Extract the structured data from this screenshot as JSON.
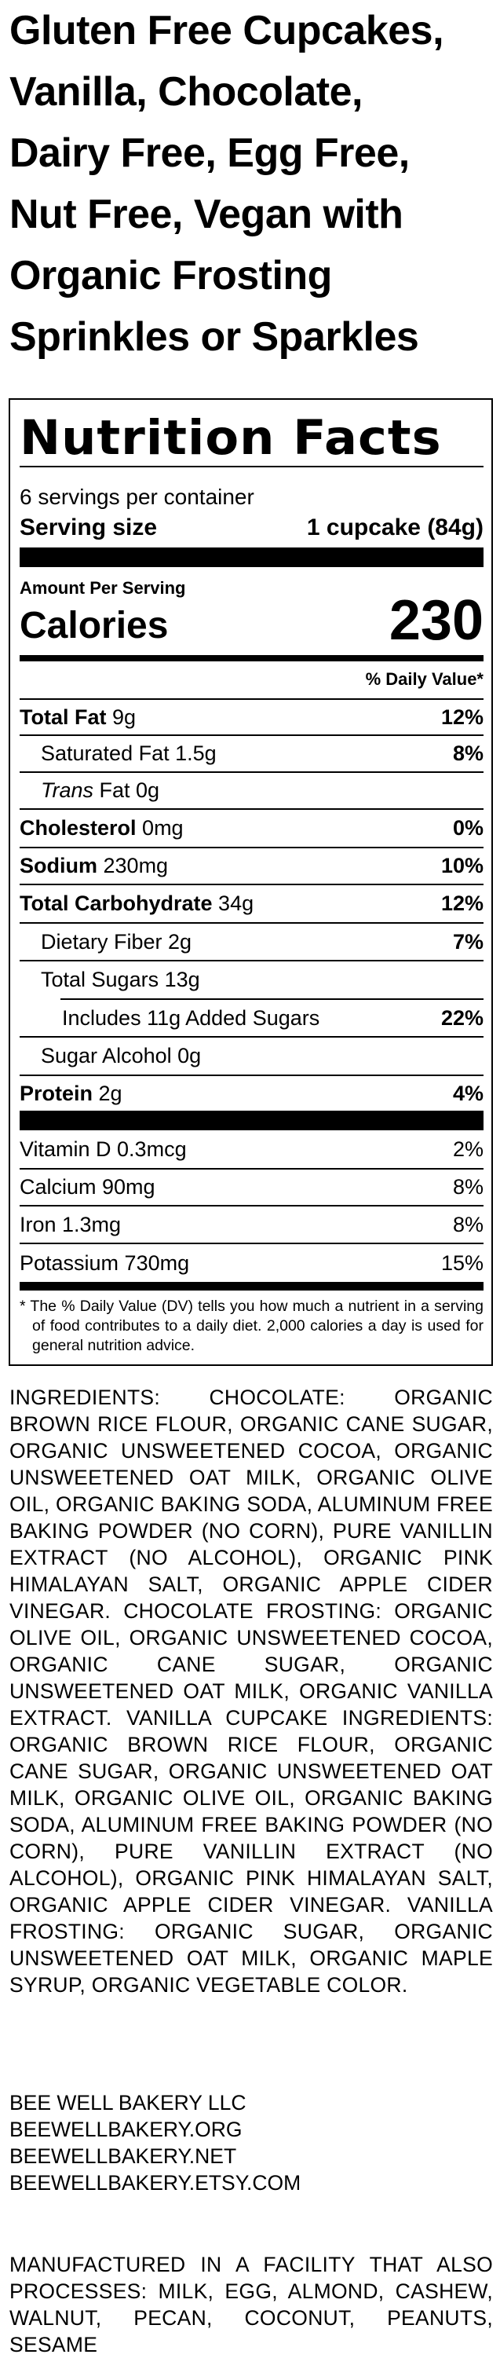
{
  "title_lines": [
    "Gluten Free Cupcakes,",
    "Vanilla, Chocolate,",
    "Dairy Free, Egg Free,",
    "Nut Free, Vegan with",
    "Organic Frosting",
    "Sprinkles or Sparkles"
  ],
  "nutrition": {
    "heading": "Nutrition Facts",
    "servings_per_container": "6 servings per container",
    "serving_size_label": "Serving size",
    "serving_size_value": "1 cupcake (84g)",
    "amount_per_serving": "Amount Per Serving",
    "calories_label": "Calories",
    "calories_value": "230",
    "daily_value_header": "% Daily Value*",
    "rows": [
      {
        "label": "Total Fat",
        "amount": "9g",
        "dv": "12%"
      },
      {
        "label": "Saturated Fat 1.5g",
        "amount": "",
        "dv": "8%"
      },
      {
        "label": "Trans",
        "amount": "Fat 0g",
        "dv": ""
      },
      {
        "label": "Cholesterol",
        "amount": "0mg",
        "dv": "0%"
      },
      {
        "label": "Sodium",
        "amount": "230mg",
        "dv": "10%"
      },
      {
        "label": "Total Carbohydrate",
        "amount": "34g",
        "dv": "12%"
      },
      {
        "label": "Dietary Fiber 2g",
        "amount": "",
        "dv": "7%"
      },
      {
        "label": "Total Sugars 13g",
        "amount": "",
        "dv": ""
      },
      {
        "label": "Includes 11g Added Sugars",
        "amount": "",
        "dv": "22%"
      },
      {
        "label": "Sugar Alcohol 0g",
        "amount": "",
        "dv": ""
      },
      {
        "label": "Protein",
        "amount": "2g",
        "dv": "4%"
      }
    ],
    "vitamins": [
      {
        "label": "Vitamin D 0.3mcg",
        "dv": "2%"
      },
      {
        "label": "Calcium 90mg",
        "dv": "8%"
      },
      {
        "label": "Iron 1.3mg",
        "dv": "8%"
      },
      {
        "label": "Potassium 730mg",
        "dv": "15%"
      }
    ],
    "footnote": "* The % Daily Value (DV) tells you how much a nutrient in a serving of food contributes to a daily diet. 2,000 calories a day is used for general nutrition advice."
  },
  "ingredients": "INGREDIENTS: CHOCOLATE: ORGANIC BROWN RICE FLOUR, ORGANIC CANE SUGAR, ORGANIC UNSWEETENED COCOA, ORGANIC UNSWEETENED OAT MILK, ORGANIC OLIVE OIL, ORGANIC BAKING SODA, ALUMINUM FREE BAKING POWDER (NO CORN), PURE VANILLIN EXTRACT (NO ALCOHOL), ORGANIC PINK HIMALAYAN SALT, ORGANIC APPLE CIDER VINEGAR. CHOCOLATE FROSTING: ORGANIC OLIVE OIL, ORGANIC UNSWEETENED COCOA, ORGANIC CANE SUGAR, ORGANIC UNSWEETENED OAT MILK, ORGANIC VANILLA EXTRACT. VANILLA CUPCAKE INGREDIENTS: ORGANIC BROWN RICE FLOUR, ORGANIC CANE SUGAR, ORGANIC UNSWEETENED OAT MILK, ORGANIC OLIVE OIL, ORGANIC BAKING SODA, ALUMINUM FREE BAKING POWDER (NO CORN), PURE VANILLIN EXTRACT (NO ALCOHOL), ORGANIC PINK HIMALAYAN SALT, ORGANIC APPLE CIDER VINEGAR. VANILLA FROSTING: ORGANIC SUGAR, ORGANIC UNSWEETENED OAT MILK, ORGANIC MAPLE SYRUP, ORGANIC VEGETABLE COLOR.",
  "manufacturer": [
    "BEE WELL BAKERY LLC",
    "BEEWELLBAKERY.ORG",
    "BEEWELLBAKERY.NET",
    "BEEWELLBAKERY.ETSY.COM"
  ],
  "facility_statement": "MANUFACTURED IN A FACILITY THAT ALSO PROCESSES: MILK, EGG, ALMOND, CASHEW, WALNUT, PECAN, COCONUT, PEANUTS, SESAME"
}
